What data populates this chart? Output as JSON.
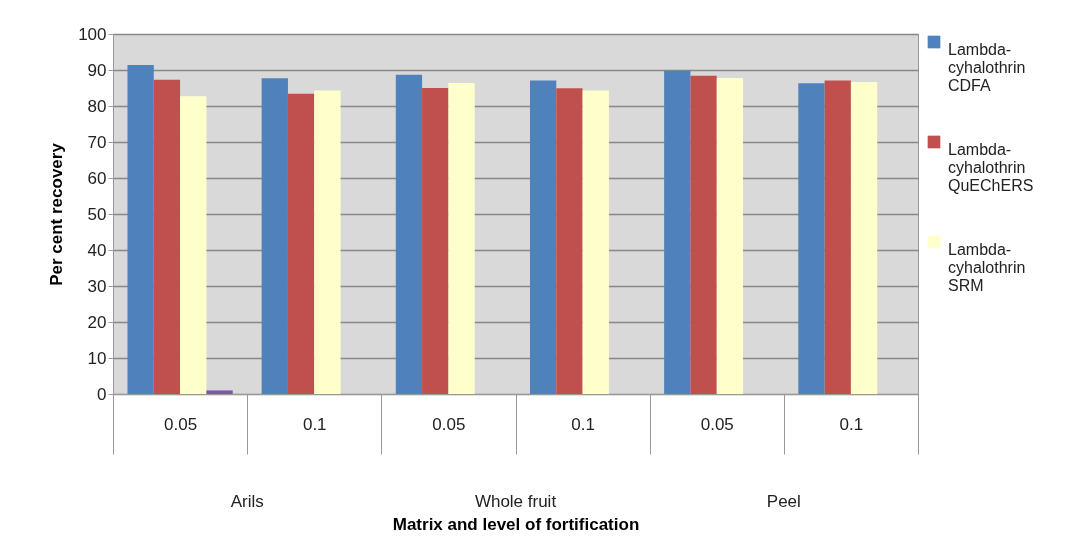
{
  "chart_data": {
    "type": "bar",
    "xlabel": "Matrix and level of fortification",
    "ylabel": "Per cent recovery",
    "categories": [
      "0.05",
      "0.1",
      "0.05",
      "0.1",
      "0.05",
      "0.1"
    ],
    "series": [
      {
        "name": "Lambda-cyhalothrin CDFA",
        "color": "#4f81bd",
        "values": [
          91.4,
          87.7,
          88.7,
          87.1,
          89.8,
          86.3
        ]
      },
      {
        "name": "Lambda-cyhalothrin QuEChERS",
        "color": "#c0504d",
        "values": [
          87.3,
          83.4,
          85.0,
          84.9,
          88.4,
          87.1
        ]
      },
      {
        "name": "Lambda-cyhalothrin SRM",
        "color": "#ffffcc",
        "values": [
          82.7,
          84.3,
          86.4,
          84.3,
          87.8,
          86.7
        ]
      },
      {
        "color": "#7a5aa6",
        "values": [
          1.0,
          null,
          null,
          null,
          null,
          null
        ]
      }
    ],
    "ylim": [
      0,
      100
    ],
    "yticks": [
      0,
      10,
      20,
      30,
      40,
      50,
      60,
      70,
      80,
      90,
      100
    ],
    "grid": "y",
    "legend": "right",
    "annotations": [
      "Arils",
      "Whole fruit",
      "Peel"
    ]
  }
}
